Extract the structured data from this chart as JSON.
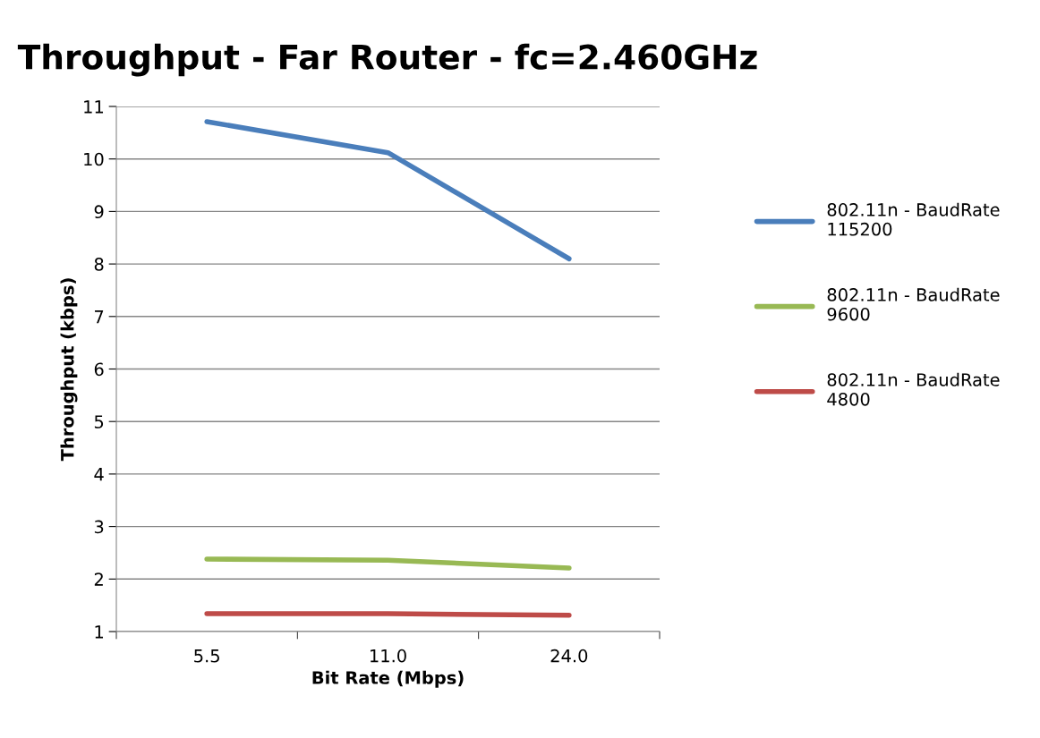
{
  "chart_data": {
    "type": "line",
    "title": "Throughput - Far Router - fc=2.460GHz",
    "xlabel": "Bit Rate (Mbps)",
    "ylabel": "Throughput (kbps)",
    "categories": [
      "5.5",
      "11.0",
      "24.0"
    ],
    "series": [
      {
        "name": "802.11n - BaudRate 115200",
        "color": "#4a7ebb",
        "values": [
          10.71,
          10.12,
          8.1
        ]
      },
      {
        "name": "802.11n - BaudRate 9600",
        "color": "#98b954",
        "values": [
          2.38,
          2.36,
          2.21
        ]
      },
      {
        "name": "802.11n - BaudRate 4800",
        "color": "#be4b48",
        "values": [
          1.34,
          1.34,
          1.31
        ]
      }
    ],
    "ylim": [
      1,
      11
    ],
    "yticks": [
      1,
      2,
      3,
      4,
      5,
      6,
      7,
      8,
      9,
      10,
      11
    ],
    "grid": "y",
    "legend": "right",
    "marker": "none",
    "line_style": "solid"
  }
}
